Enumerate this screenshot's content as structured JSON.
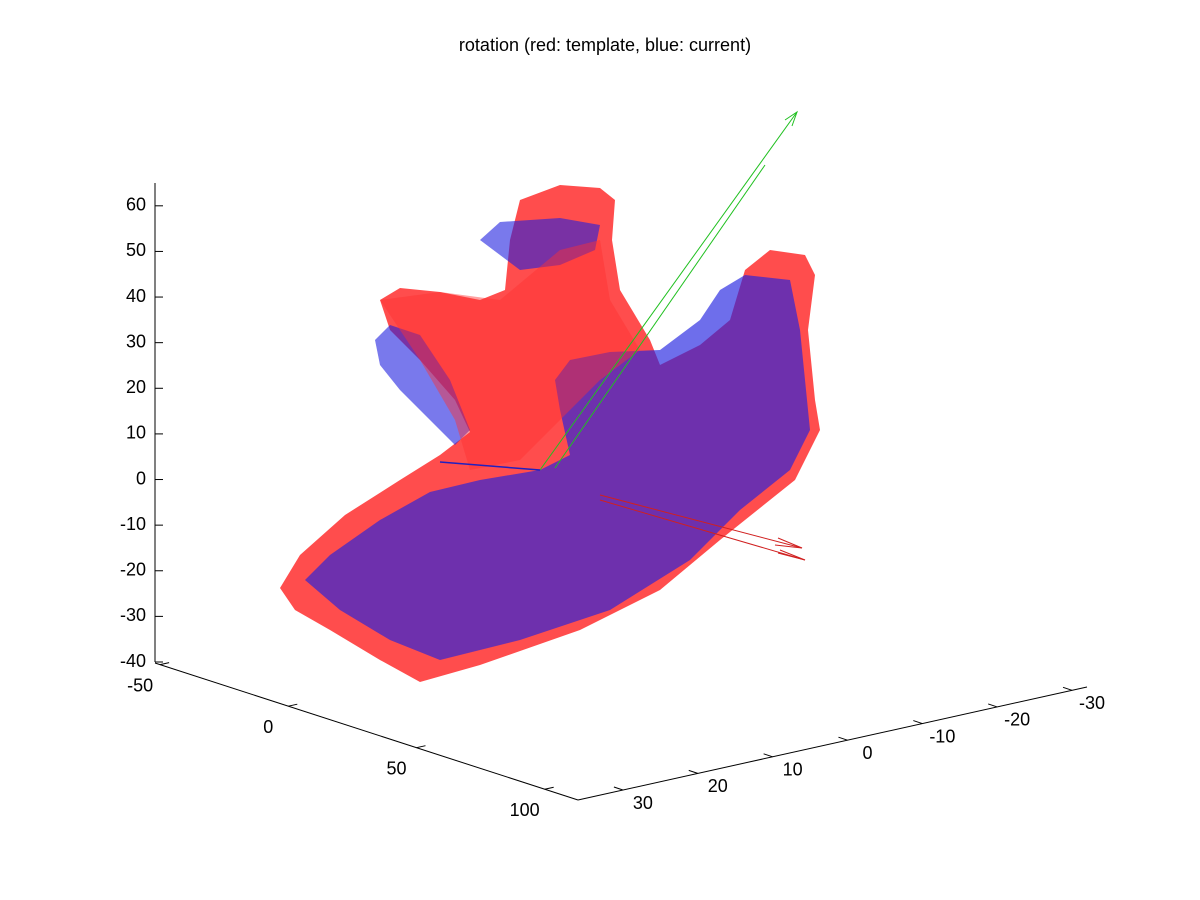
{
  "chart_data": {
    "type": "surface3d",
    "title": "rotation (red: template, blue: current)",
    "zlim": [
      -40,
      65
    ],
    "zticks": [
      -40,
      -30,
      -20,
      -10,
      0,
      10,
      20,
      30,
      40,
      50,
      60
    ],
    "xlim": [
      -52,
      113
    ],
    "xticks": [
      -50,
      0,
      50,
      100
    ],
    "ylim": [
      36,
      -32
    ],
    "yticks": [
      30,
      20,
      10,
      0,
      -10,
      -20,
      -30
    ]
  }
}
